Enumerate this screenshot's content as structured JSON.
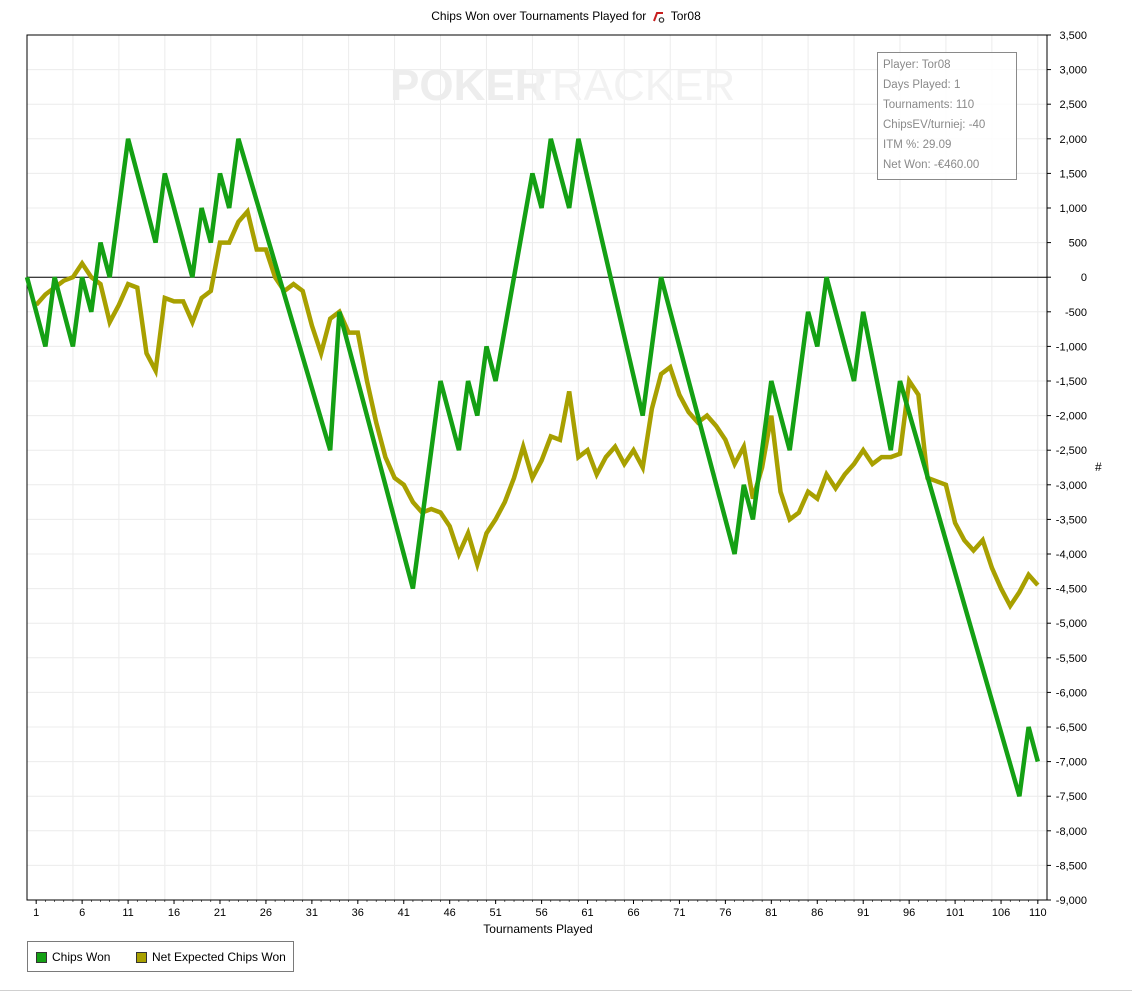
{
  "chart_data": {
    "type": "line",
    "title": "Chips Won over Tournaments Played for",
    "player_name": "Tor08",
    "xlabel": "Tournaments Played",
    "ylabel": "#",
    "watermark": {
      "left": "POKER",
      "right": "TRACKER"
    },
    "xlim": [
      0,
      111
    ],
    "ylim": [
      -9000,
      3500
    ],
    "x_ticks": [
      1,
      6,
      11,
      16,
      21,
      26,
      31,
      36,
      41,
      46,
      51,
      56,
      61,
      66,
      71,
      76,
      81,
      86,
      91,
      96,
      101,
      106,
      110
    ],
    "y_ticks": [
      3500,
      3000,
      2500,
      2000,
      1500,
      1000,
      500,
      0,
      -500,
      -1000,
      -1500,
      -2000,
      -2500,
      -3000,
      -3500,
      -4000,
      -4500,
      -5000,
      -5500,
      -6000,
      -6500,
      -7000,
      -7500,
      -8000,
      -8500,
      -9000
    ],
    "y_tick_labels": [
      "3,500",
      "3,000",
      "2,500",
      "2,000",
      "1,500",
      "1,000",
      "500",
      "0",
      "-500",
      "-1,000",
      "-1,500",
      "-2,000",
      "-2,500",
      "-3,000",
      "-3,500",
      "-4,000",
      "-4,500",
      "-5,000",
      "-5,500",
      "-6,000",
      "-6,500",
      "-7,000",
      "-7,500",
      "-8,000",
      "-8,500",
      "-9,000"
    ],
    "grid": true,
    "zero_line": true,
    "legend_position": "bottom-left",
    "series": [
      {
        "name": "Chips Won",
        "color": "#14a014",
        "points": [
          [
            0,
            0
          ],
          [
            2,
            -1000
          ],
          [
            3,
            0
          ],
          [
            5,
            -1000
          ],
          [
            6,
            0
          ],
          [
            7,
            -500
          ],
          [
            8,
            500
          ],
          [
            9,
            0
          ],
          [
            11,
            2000
          ],
          [
            14,
            500
          ],
          [
            15,
            1500
          ],
          [
            18,
            0
          ],
          [
            19,
            1000
          ],
          [
            20,
            500
          ],
          [
            21,
            1500
          ],
          [
            22,
            1000
          ],
          [
            23,
            2000
          ],
          [
            33,
            -2500
          ],
          [
            34,
            -500
          ],
          [
            42,
            -4500
          ],
          [
            45,
            -1500
          ],
          [
            47,
            -2500
          ],
          [
            48,
            -1500
          ],
          [
            49,
            -2000
          ],
          [
            50,
            -1000
          ],
          [
            51,
            -1500
          ],
          [
            55,
            1500
          ],
          [
            56,
            1000
          ],
          [
            57,
            2000
          ],
          [
            59,
            1000
          ],
          [
            60,
            2000
          ],
          [
            67,
            -2000
          ],
          [
            69,
            0
          ],
          [
            77,
            -4000
          ],
          [
            78,
            -3000
          ],
          [
            79,
            -3500
          ],
          [
            81,
            -1500
          ],
          [
            83,
            -2500
          ],
          [
            85,
            -500
          ],
          [
            86,
            -1000
          ],
          [
            87,
            0
          ],
          [
            90,
            -1500
          ],
          [
            91,
            -500
          ],
          [
            94,
            -2500
          ],
          [
            95,
            -1500
          ],
          [
            108,
            -7500
          ],
          [
            109,
            -6500
          ],
          [
            110,
            -7000
          ]
        ]
      },
      {
        "name": "Net Expected Chips Won",
        "color": "#a8a000",
        "points": [
          [
            1,
            -400
          ],
          [
            2,
            -250
          ],
          [
            3,
            -150
          ],
          [
            4,
            -50
          ],
          [
            5,
            0
          ],
          [
            6,
            200
          ],
          [
            7,
            0
          ],
          [
            8,
            -100
          ],
          [
            9,
            -650
          ],
          [
            10,
            -400
          ],
          [
            11,
            -100
          ],
          [
            12,
            -150
          ],
          [
            13,
            -1100
          ],
          [
            14,
            -1350
          ],
          [
            15,
            -300
          ],
          [
            16,
            -350
          ],
          [
            17,
            -350
          ],
          [
            18,
            -650
          ],
          [
            19,
            -300
          ],
          [
            20,
            -200
          ],
          [
            21,
            500
          ],
          [
            22,
            500
          ],
          [
            23,
            800
          ],
          [
            24,
            950
          ],
          [
            25,
            400
          ],
          [
            26,
            400
          ],
          [
            27,
            0
          ],
          [
            28,
            -200
          ],
          [
            29,
            -100
          ],
          [
            30,
            -200
          ],
          [
            31,
            -700
          ],
          [
            32,
            -1100
          ],
          [
            33,
            -600
          ],
          [
            34,
            -500
          ],
          [
            35,
            -800
          ],
          [
            36,
            -800
          ],
          [
            37,
            -1500
          ],
          [
            38,
            -2100
          ],
          [
            39,
            -2600
          ],
          [
            40,
            -2900
          ],
          [
            41,
            -3000
          ],
          [
            42,
            -3250
          ],
          [
            43,
            -3400
          ],
          [
            44,
            -3350
          ],
          [
            45,
            -3400
          ],
          [
            46,
            -3600
          ],
          [
            47,
            -4000
          ],
          [
            48,
            -3700
          ],
          [
            49,
            -4150
          ],
          [
            50,
            -3700
          ],
          [
            51,
            -3500
          ],
          [
            52,
            -3250
          ],
          [
            53,
            -2900
          ],
          [
            54,
            -2450
          ],
          [
            55,
            -2900
          ],
          [
            56,
            -2650
          ],
          [
            57,
            -2300
          ],
          [
            58,
            -2350
          ],
          [
            59,
            -1650
          ],
          [
            60,
            -2600
          ],
          [
            61,
            -2500
          ],
          [
            62,
            -2850
          ],
          [
            63,
            -2600
          ],
          [
            64,
            -2450
          ],
          [
            65,
            -2700
          ],
          [
            66,
            -2500
          ],
          [
            67,
            -2750
          ],
          [
            68,
            -1900
          ],
          [
            69,
            -1400
          ],
          [
            70,
            -1300
          ],
          [
            71,
            -1700
          ],
          [
            72,
            -1950
          ],
          [
            73,
            -2100
          ],
          [
            74,
            -2000
          ],
          [
            75,
            -2150
          ],
          [
            76,
            -2350
          ],
          [
            77,
            -2700
          ],
          [
            78,
            -2450
          ],
          [
            79,
            -3200
          ],
          [
            80,
            -2750
          ],
          [
            81,
            -2000
          ],
          [
            82,
            -3100
          ],
          [
            83,
            -3500
          ],
          [
            84,
            -3400
          ],
          [
            85,
            -3100
          ],
          [
            86,
            -3200
          ],
          [
            87,
            -2850
          ],
          [
            88,
            -3050
          ],
          [
            89,
            -2850
          ],
          [
            90,
            -2700
          ],
          [
            91,
            -2500
          ],
          [
            92,
            -2700
          ],
          [
            93,
            -2600
          ],
          [
            94,
            -2600
          ],
          [
            95,
            -2550
          ],
          [
            96,
            -1500
          ],
          [
            97,
            -1700
          ],
          [
            98,
            -2900
          ],
          [
            99,
            -2950
          ],
          [
            100,
            -3000
          ],
          [
            101,
            -3550
          ],
          [
            102,
            -3800
          ],
          [
            103,
            -3950
          ],
          [
            104,
            -3800
          ],
          [
            105,
            -4200
          ],
          [
            106,
            -4500
          ],
          [
            107,
            -4750
          ],
          [
            108,
            -4550
          ],
          [
            109,
            -4300
          ],
          [
            110,
            -4450
          ]
        ]
      }
    ]
  },
  "stats": {
    "player": "Player: Tor08",
    "days_played": "Days Played: 1",
    "tournaments": "Tournaments: 110",
    "chips_ev": "ChipsEV/turniej: -40",
    "itm": "ITM %: 29.09",
    "net_won": "Net Won: -€460.00"
  },
  "legend": {
    "chips_won": "Chips Won",
    "net_expected": "Net Expected Chips Won"
  }
}
